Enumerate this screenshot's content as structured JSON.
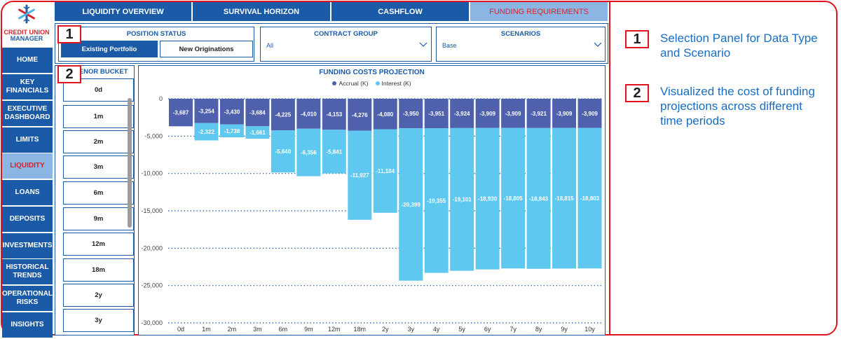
{
  "logo": {
    "line1": "CREDIT UNION",
    "line2": "MANAGER"
  },
  "sidebar": {
    "items": [
      {
        "label": "HOME",
        "active": false
      },
      {
        "label": "KEY FINANCIALS",
        "active": false
      },
      {
        "label": "EXECUTIVE DASHBOARD",
        "active": false
      },
      {
        "label": "LIMITS",
        "active": false
      },
      {
        "label": "LIQUIDITY",
        "active": true
      },
      {
        "label": "LOANS",
        "active": false
      },
      {
        "label": "DEPOSITS",
        "active": false
      },
      {
        "label": "INVESTMENTS",
        "active": false
      },
      {
        "label": "HISTORICAL TRENDS",
        "active": false
      },
      {
        "label": "OPERATIONAL RISKS",
        "active": false
      },
      {
        "label": "INSIGHTS",
        "active": false
      }
    ]
  },
  "tabs": [
    {
      "label": "LIQUIDITY OVERVIEW",
      "active": false
    },
    {
      "label": "SURVIVAL HORIZON",
      "active": false
    },
    {
      "label": "CASHFLOW",
      "active": false
    },
    {
      "label": "FUNDING REQUIREMENTS",
      "active": true
    }
  ],
  "position_status": {
    "title": "POSITION STATUS",
    "options": [
      "Existing Portfolio",
      "New Originations"
    ],
    "selected": "Existing Portfolio"
  },
  "contract_group": {
    "title": "CONTRACT GROUP",
    "value": "All"
  },
  "scenarios": {
    "title": "SCENARIOS",
    "value": "Base"
  },
  "tenor_bucket": {
    "title": "TENOR BUCKET",
    "items": [
      "0d",
      "1m",
      "2m",
      "3m",
      "6m",
      "9m",
      "12m",
      "18m",
      "2y",
      "3y"
    ]
  },
  "badges": {
    "one": "1",
    "two": "2"
  },
  "annotations": {
    "one": "Selection Panel for Data Type and Scenario",
    "two": "Visualized the cost of funding projections across different time periods"
  },
  "colors": {
    "primary": "#1b5aa6",
    "accent_red": "#e0141e",
    "accrual": "#4f61ad",
    "interest": "#5fc8f0",
    "active_tab": "#8bb5e2"
  },
  "chart_data": {
    "type": "bar",
    "title": "FUNDING COSTS PROJECTION",
    "stacked": true,
    "categories": [
      "0d",
      "1m",
      "2m",
      "3m",
      "6m",
      "9m",
      "12m",
      "18m",
      "2y",
      "3y",
      "4y",
      "5y",
      "6y",
      "7y",
      "8y",
      "9y",
      "10y"
    ],
    "series": [
      {
        "name": "Accrual (K)",
        "color": "#4f61ad",
        "values": [
          -3687,
          -3254,
          -3430,
          -3684,
          -4225,
          -4010,
          -4153,
          -4276,
          -4080,
          -3950,
          -3951,
          -3924,
          -3909,
          -3909,
          -3921,
          -3909,
          -3909
        ]
      },
      {
        "name": "Interest (K)",
        "color": "#5fc8f0",
        "values": [
          null,
          -2322,
          -1738,
          -1661,
          -5640,
          -6356,
          -5841,
          -11927,
          -11184,
          -20399,
          -19355,
          -19101,
          -18930,
          -18805,
          -18843,
          -18815,
          -18803
        ]
      }
    ],
    "data_labels": {
      "accrual": [
        "-3,687",
        "-3,254",
        "-3,430",
        "-3,684",
        "-4,225",
        "-4,010",
        "-4,153",
        "-4,276",
        "-4,080",
        "-3,950",
        "-3,951",
        "-3,924",
        "-3,909",
        "-3,909",
        "-3,921",
        "-3,909",
        "-3,909"
      ],
      "interest": [
        "",
        "-2,322",
        "-1,738",
        "-1,661",
        "-5,640",
        "-6,356",
        "-5,841",
        "-11,927",
        "-11,184",
        "-20,399",
        "-19,355",
        "-19,101",
        "-18,930",
        "-18,805",
        "-18,843",
        "-18,815",
        "-18,803"
      ]
    },
    "y_ticks": [
      0,
      -5000,
      -10000,
      -15000,
      -20000,
      -25000,
      -30000
    ],
    "y_tick_labels": [
      "0",
      "-5,000",
      "-10,000",
      "-15,000",
      "-20,000",
      "-25,000",
      "-30,000"
    ],
    "ylim": [
      -30000,
      0
    ],
    "grid": "dotted horizontal",
    "legend": "top-center"
  }
}
